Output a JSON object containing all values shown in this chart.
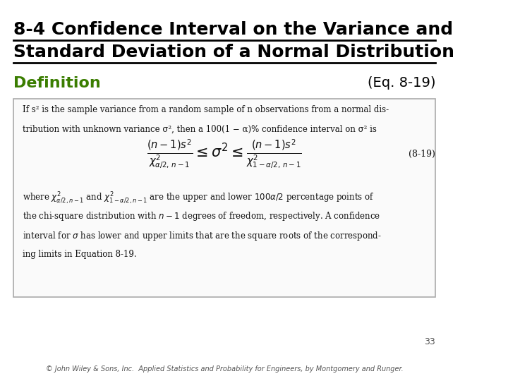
{
  "title_line1": "8-4 Confidence Interval on the Variance and",
  "title_line2": "Standard Deviation of a Normal Distribution",
  "definition_label": "Definition",
  "eq_label": "(Eq. 8-19)",
  "definition_color": "#3a7d00",
  "title_color": "#000000",
  "bg_color": "#ffffff",
  "box_text_lines": [
    "If s² is the sample variance from a random sample of n observations from a normal dis-",
    "tribution with unknown variance σ², then a 100(1 − α)% confidence interval on σ² is"
  ],
  "formula_line": "\\frac{(n-1)s^2}{\\chi^2_{\\alpha/2,n-1}} \\leq \\sigma^2 \\leq \\frac{(n-1)s^2}{\\chi^2_{1-\\alpha/2,n-1}}",
  "eq_number": "(8-19)",
  "where_text_lines": [
    "where $\\chi^2_{\\alpha/2,n-1}$ and $\\chi^2_{1-\\alpha/2,n-1}$ are the upper and lower $100\\alpha/2$ percentage points of",
    "the chi-square distribution with $n - 1$ degrees of freedom, respectively. A confidence",
    "interval for $\\sigma$ has lower and upper limits that are the square roots of the correspond-",
    "ing limits in Equation 8-19."
  ],
  "page_number": "33",
  "footer_text": "© John Wiley & Sons, Inc.  Applied Statistics and Probability for Engineers, by Montgomery and Runger.",
  "title_fontsize": 18,
  "def_fontsize": 16,
  "body_fontsize": 10,
  "formula_fontsize": 14
}
